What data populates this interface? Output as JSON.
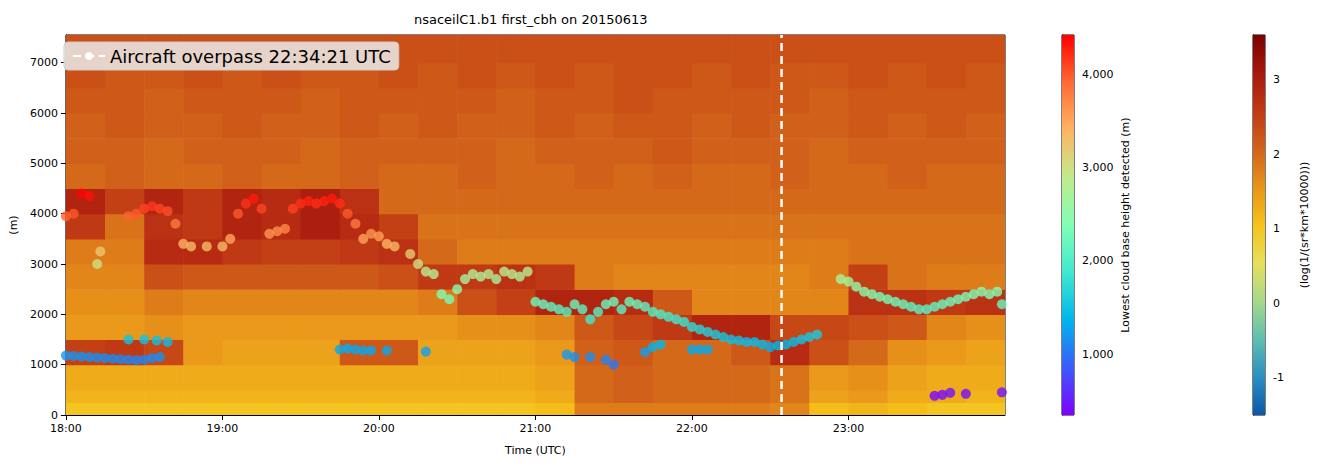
{
  "chart_data": {
    "type": "heatmap",
    "title": "nsaceilC1.b1 first_cbh on 20150613",
    "x_label": "Time (UTC)",
    "y_label": "(m)",
    "xlim": [
      18,
      24
    ],
    "xticks": [
      {
        "value": 18,
        "label": "18:00"
      },
      {
        "value": 19,
        "label": "19:00"
      },
      {
        "value": 20,
        "label": "20:00"
      },
      {
        "value": 21,
        "label": "21:00"
      },
      {
        "value": 22,
        "label": "22:00"
      },
      {
        "value": 23,
        "label": "23:00"
      }
    ],
    "ylim": [
      0,
      7550
    ],
    "yticks": [
      0,
      1000,
      2000,
      3000,
      4000,
      5000,
      6000,
      7000
    ],
    "legend": "upper left",
    "heatmap": {
      "x_edges": [
        18,
        18.25,
        18.5,
        18.75,
        19,
        19.25,
        19.5,
        19.75,
        20,
        20.25,
        20.5,
        20.75,
        21,
        21.25,
        21.5,
        21.75,
        22,
        22.25,
        22.5,
        22.75,
        23,
        23.25,
        23.5,
        23.75,
        24
      ],
      "y_edges": [
        0,
        250,
        500,
        1000,
        1500,
        2000,
        2500,
        3000,
        3500,
        4000,
        4500,
        5000,
        5500,
        6000,
        6500,
        7000,
        7550
      ],
      "cells": [
        [
          1.0,
          1.0,
          1.0,
          1.0,
          1.0,
          1.0,
          1.0,
          1.0,
          1.0,
          1.0,
          1.0,
          1.0,
          1.1,
          1.8,
          1.8,
          1.8,
          1.8,
          1.8,
          1.7,
          1.1,
          1.2,
          1.1,
          1.0,
          1.0
        ],
        [
          1.2,
          1.2,
          1.2,
          1.2,
          1.2,
          1.2,
          1.2,
          1.2,
          1.2,
          1.2,
          1.2,
          1.2,
          1.3,
          2.0,
          2.1,
          2.0,
          2.0,
          2.0,
          1.9,
          1.4,
          1.5,
          1.3,
          1.3,
          1.2
        ],
        [
          1.3,
          1.3,
          1.3,
          1.3,
          1.3,
          1.3,
          1.3,
          1.3,
          1.3,
          1.3,
          1.3,
          1.3,
          1.4,
          2.0,
          2.1,
          2.0,
          2.0,
          2.0,
          1.9,
          1.5,
          1.6,
          1.4,
          1.3,
          1.3
        ],
        [
          2.5,
          2.6,
          2.4,
          1.5,
          1.4,
          1.4,
          1.4,
          2.2,
          2.2,
          1.4,
          1.4,
          1.4,
          1.5,
          2.1,
          2.2,
          2.0,
          2.0,
          2.2,
          2.8,
          2.3,
          2.0,
          1.6,
          1.5,
          1.4
        ],
        [
          1.5,
          1.5,
          1.6,
          1.5,
          1.5,
          1.5,
          1.5,
          1.5,
          1.5,
          1.5,
          1.6,
          1.6,
          1.7,
          2.2,
          2.4,
          2.6,
          2.9,
          2.9,
          2.4,
          2.4,
          2.3,
          2.2,
          1.7,
          1.6
        ],
        [
          1.6,
          1.6,
          1.8,
          1.7,
          1.7,
          1.7,
          1.7,
          1.7,
          1.7,
          1.8,
          2.3,
          2.5,
          2.9,
          2.9,
          2.8,
          2.2,
          1.7,
          1.7,
          1.7,
          1.7,
          2.7,
          2.7,
          2.6,
          2.7
        ],
        [
          1.7,
          1.7,
          2.3,
          2.2,
          2.2,
          2.2,
          2.2,
          2.2,
          2.3,
          2.6,
          2.6,
          2.7,
          2.6,
          1.8,
          1.7,
          1.7,
          1.7,
          1.7,
          1.7,
          1.8,
          2.5,
          1.9,
          1.8,
          1.8
        ],
        [
          1.8,
          1.8,
          2.8,
          2.8,
          2.6,
          2.5,
          2.5,
          2.6,
          2.7,
          2.0,
          1.8,
          1.8,
          1.8,
          1.8,
          1.8,
          1.8,
          1.8,
          1.8,
          1.8,
          1.8,
          1.9,
          1.9,
          1.9,
          1.9
        ],
        [
          2.6,
          1.9,
          2.7,
          2.6,
          2.9,
          2.8,
          3.0,
          2.8,
          2.5,
          1.9,
          1.9,
          1.9,
          1.9,
          1.9,
          1.9,
          1.9,
          1.9,
          1.9,
          1.9,
          1.9,
          1.9,
          1.9,
          1.9,
          1.9
        ],
        [
          2.9,
          2.5,
          2.9,
          2.6,
          2.9,
          2.8,
          3.0,
          2.7,
          2.0,
          2.0,
          2.0,
          2.0,
          2.0,
          2.0,
          2.0,
          2.0,
          2.0,
          2.0,
          2.0,
          2.0,
          2.0,
          2.0,
          2.0,
          2.0
        ],
        [
          2.0,
          2.1,
          2.0,
          2.0,
          2.1,
          2.0,
          2.0,
          2.1,
          2.0,
          2.0,
          2.1,
          2.0,
          2.0,
          2.1,
          2.0,
          2.1,
          2.0,
          2.0,
          2.1,
          2.0,
          2.0,
          2.1,
          2.0,
          2.0
        ],
        [
          2.1,
          2.1,
          2.0,
          2.1,
          2.1,
          2.1,
          2.0,
          2.1,
          2.1,
          2.1,
          2.1,
          2.0,
          2.1,
          2.1,
          2.1,
          2.2,
          2.1,
          2.1,
          2.1,
          2.0,
          2.1,
          2.1,
          2.1,
          2.1
        ],
        [
          2.1,
          2.2,
          2.1,
          2.1,
          2.2,
          2.1,
          2.1,
          2.2,
          2.1,
          2.2,
          2.1,
          2.1,
          2.2,
          2.1,
          2.2,
          2.2,
          2.1,
          2.2,
          2.1,
          2.1,
          2.2,
          2.1,
          2.2,
          2.1
        ],
        [
          2.2,
          2.2,
          2.1,
          2.2,
          2.2,
          2.2,
          2.1,
          2.2,
          2.2,
          2.2,
          2.2,
          2.1,
          2.2,
          2.2,
          2.3,
          2.2,
          2.2,
          2.2,
          2.2,
          2.1,
          2.2,
          2.2,
          2.2,
          2.2
        ],
        [
          2.3,
          2.2,
          2.2,
          2.3,
          2.2,
          2.3,
          2.2,
          2.2,
          2.3,
          2.2,
          2.3,
          2.2,
          2.3,
          2.2,
          2.3,
          2.3,
          2.2,
          2.3,
          2.2,
          2.2,
          2.3,
          2.2,
          2.3,
          2.2
        ],
        [
          2.3,
          2.3,
          2.3,
          2.3,
          2.3,
          2.3,
          2.3,
          2.3,
          2.3,
          2.3,
          2.3,
          2.3,
          2.3,
          2.3,
          2.3,
          2.3,
          2.3,
          2.3,
          2.3,
          2.3,
          2.3,
          2.3,
          2.3,
          2.3
        ]
      ],
      "colorbar": {
        "label": "(log(1/(sr*km*10000)))",
        "range": [
          -1.5,
          3.6
        ],
        "ticks": [
          -1,
          0,
          1,
          2,
          3
        ]
      }
    },
    "series": [
      {
        "type": "scatter",
        "marker": "circle",
        "x": [
          18.0,
          18.05,
          18.1,
          18.15,
          18.2,
          18.25,
          18.3,
          18.35,
          18.4,
          18.45,
          18.5,
          18.55,
          18.6,
          18.4,
          18.5,
          18.58,
          18.65,
          19.75,
          19.8,
          19.85,
          19.9,
          19.95,
          20.05,
          20.3,
          18.0,
          18.05,
          18.1,
          18.15,
          18.2,
          18.22,
          18.4,
          18.45,
          18.5,
          18.55,
          18.6,
          18.65,
          18.7,
          18.75,
          18.8,
          18.9,
          19.0,
          19.05,
          19.1,
          19.15,
          19.2,
          19.25,
          19.3,
          19.35,
          19.4,
          19.45,
          19.5,
          19.55,
          19.6,
          19.65,
          19.7,
          19.75,
          19.8,
          19.85,
          19.9,
          19.95,
          20.0,
          20.05,
          20.1,
          20.2,
          20.25,
          20.3,
          20.35,
          20.4,
          20.45,
          20.5,
          20.55,
          20.6,
          20.65,
          20.7,
          20.75,
          20.8,
          20.85,
          20.9,
          20.95,
          21.0,
          21.05,
          21.1,
          21.15,
          21.2,
          21.25,
          21.3,
          21.35,
          21.4,
          21.45,
          21.5,
          21.55,
          21.6,
          21.65,
          21.7,
          21.75,
          21.8,
          21.85,
          21.9,
          21.95,
          22.0,
          22.05,
          22.1,
          22.15,
          22.2,
          22.25,
          22.3,
          22.35,
          22.4,
          22.45,
          22.5,
          22.55,
          22.6,
          22.65,
          22.7,
          22.75,
          22.8,
          21.2,
          21.25,
          21.35,
          21.45,
          21.5,
          21.7,
          21.75,
          21.8,
          22.0,
          22.05,
          22.1,
          22.95,
          23.0,
          23.05,
          23.1,
          23.15,
          23.2,
          23.25,
          23.3,
          23.35,
          23.4,
          23.45,
          23.5,
          23.55,
          23.6,
          23.65,
          23.7,
          23.75,
          23.8,
          23.85,
          23.9,
          23.95,
          23.98,
          23.55,
          23.6,
          23.65,
          23.75,
          23.98
        ],
        "y": [
          1180,
          1170,
          1160,
          1150,
          1140,
          1130,
          1120,
          1110,
          1100,
          1090,
          1100,
          1130,
          1150,
          1500,
          1500,
          1480,
          1450,
          1300,
          1320,
          1300,
          1280,
          1280,
          1280,
          1260,
          3950,
          4000,
          4400,
          4350,
          3000,
          3250,
          3950,
          4000,
          4100,
          4150,
          4100,
          4050,
          3800,
          3400,
          3350,
          3350,
          3350,
          3500,
          4000,
          4200,
          4300,
          4100,
          3600,
          3650,
          3700,
          4100,
          4200,
          4250,
          4200,
          4250,
          4300,
          4200,
          4000,
          3800,
          3500,
          3600,
          3550,
          3400,
          3350,
          3200,
          3000,
          2850,
          2800,
          2400,
          2300,
          2500,
          2700,
          2800,
          2750,
          2800,
          2700,
          2850,
          2800,
          2750,
          2850,
          2250,
          2200,
          2150,
          2100,
          2050,
          2200,
          2100,
          1900,
          2050,
          2200,
          2250,
          2100,
          2250,
          2200,
          2150,
          2050,
          2000,
          1950,
          1900,
          1850,
          1750,
          1700,
          1650,
          1600,
          1550,
          1500,
          1480,
          1450,
          1450,
          1400,
          1350,
          1380,
          1400,
          1450,
          1500,
          1550,
          1600,
          1200,
          1150,
          1150,
          1100,
          1000,
          1250,
          1350,
          1400,
          1300,
          1300,
          1300,
          2700,
          2650,
          2550,
          2450,
          2400,
          2350,
          2300,
          2250,
          2200,
          2150,
          2100,
          2100,
          2150,
          2200,
          2250,
          2300,
          2350,
          2400,
          2450,
          2400,
          2450,
          2200,
          380,
          400,
          440,
          420,
          450
        ],
        "colorbar": {
          "label": "Lowest cloud base height detected (m)",
          "range": [
            350,
            4420
          ],
          "ticks": [
            1000,
            2000,
            3000,
            4000
          ]
        }
      },
      {
        "type": "line",
        "name": "Aircraft overpass 22:34:21 UTC",
        "x": 22.5725,
        "color": "#ffffff",
        "line_style": "dashed"
      }
    ]
  }
}
